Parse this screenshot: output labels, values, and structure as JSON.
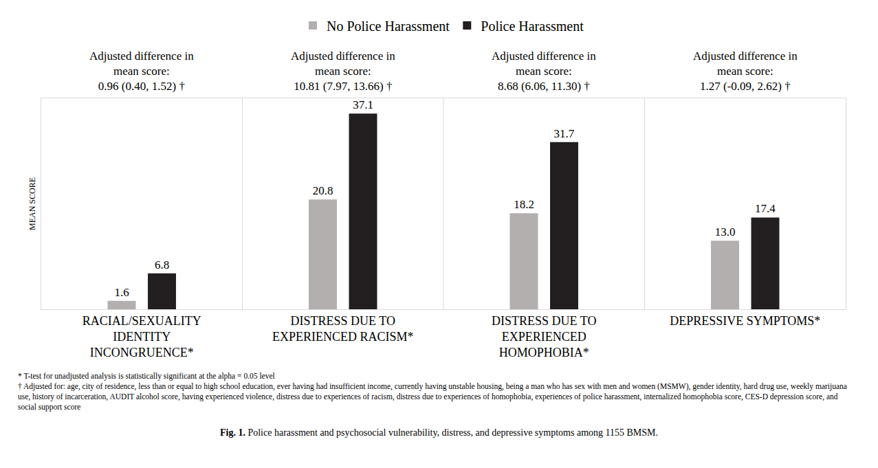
{
  "chart_data": {
    "type": "bar",
    "title": "Fig. 1. Police harassment and psychosocial vulnerability, distress, and depressive symptoms among 1155 BMSM.",
    "y_label": "MEAN SCORE",
    "categories": [
      "RACIAL/SEXUALITY IDENTITY INCONGRUENCE*",
      "DISTRESS DUE TO EXPERIENCED RACISM*",
      "DISTRESS DUE TO EXPERIENCED HOMOPHOBIA*",
      "DEPRESSIVE SYMPTOMS*"
    ],
    "series": [
      {
        "name": "No Police Harassment",
        "color": "#b3afaf",
        "values": [
          1.6,
          20.8,
          18.2,
          13.0
        ],
        "value_labels": [
          "1.6",
          "20.8",
          "18.2",
          "13.0"
        ]
      },
      {
        "name": "Police Harassment",
        "color": "#231f20",
        "values": [
          6.8,
          37.1,
          31.7,
          17.4
        ],
        "value_labels": [
          "6.8",
          "37.1",
          "31.7",
          "17.4"
        ]
      }
    ],
    "annotations": [
      {
        "category": "RACIAL/SEXUALITY IDENTITY INCONGRUENCE*",
        "label": "Adjusted difference in mean score:",
        "value": "0.96 (0.40, 1.52) †"
      },
      {
        "category": "DISTRESS DUE TO EXPERIENCED RACISM*",
        "label": "Adjusted difference in mean score:",
        "value": "10.81 (7.97, 13.66) †"
      },
      {
        "category": "DISTRESS DUE TO EXPERIENCED HOMOPHOBIA*",
        "label": "Adjusted difference in mean score:",
        "value": "8.68 (6.06, 11.30) †"
      },
      {
        "category": "DEPRESSIVE SYMPTOMS*",
        "label": "Adjusted difference in mean score:",
        "value": "1.27 (-0.09, 2.62) †"
      }
    ],
    "notes": [
      "* T-test for unadjusted analysis is statistically significant at the alpha = 0.05 level",
      "† Adjusted for: age, city of residence, less than or equal to high school education, ever having had insufficient income, currently having unstable housing, being a man who has sex with men and women (MSMW), gender identity, hard drug use, weekly marijuana use, history of incarceration, AUDIT alcohol score, having experienced violence, distress due to experiences of racism, distress due to experiences of homophobia, experiences of police harassment, internalized homophobia score, CES-D depression score, and social support score"
    ],
    "ylim": [
      0,
      40
    ],
    "yticks": [],
    "tick_labels": "x",
    "grid": false,
    "legend": "top",
    "data_labels": true
  }
}
